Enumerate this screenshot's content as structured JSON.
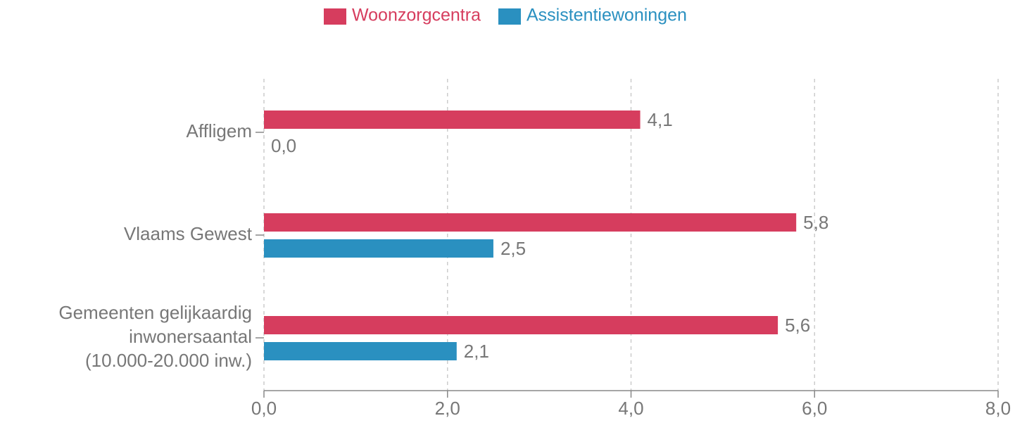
{
  "chart_data": {
    "type": "hbar",
    "categories": [
      "Affligem",
      "Vlaams Gewest",
      "Gemeenten gelijkaardig\ninwonersaantal\n(10.000-20.000 inw.)"
    ],
    "series": [
      {
        "name": "Woonzorgcentra",
        "color": "#d63d5e",
        "values": [
          4.1,
          5.8,
          5.6
        ],
        "value_labels": [
          "4,1",
          "5,8",
          "5,6"
        ]
      },
      {
        "name": "Assistentiewoningen",
        "color": "#2a90c0",
        "values": [
          0,
          2.5,
          2.1
        ],
        "value_labels": [
          "0,0",
          "2,5",
          "2,1"
        ]
      }
    ],
    "xlim": [
      0,
      8
    ],
    "xticks": [
      {
        "value": 0,
        "label": "0,0"
      },
      {
        "value": 2,
        "label": "2,0"
      },
      {
        "value": 4,
        "label": "4,0"
      },
      {
        "value": 6,
        "label": "6,0"
      },
      {
        "value": 8,
        "label": "8,0"
      }
    ],
    "grid": true,
    "legend": "top"
  }
}
